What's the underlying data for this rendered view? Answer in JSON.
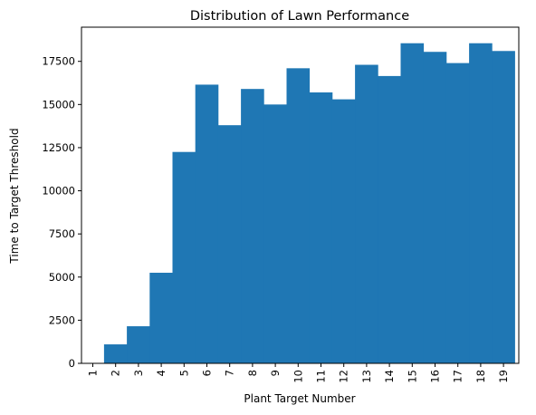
{
  "chart_data": {
    "type": "bar",
    "title": "Distribution of Lawn Performance",
    "xlabel": "Plant Target Number",
    "ylabel": "Time to Target Threshold",
    "categories": [
      "1",
      "2",
      "3",
      "4",
      "5",
      "6",
      "7",
      "8",
      "9",
      "10",
      "11",
      "12",
      "13",
      "14",
      "15",
      "16",
      "17",
      "18",
      "19"
    ],
    "values": [
      0,
      1100,
      2150,
      5250,
      12250,
      16150,
      13800,
      15900,
      15000,
      17100,
      15700,
      15300,
      17300,
      16650,
      18550,
      18050,
      17400,
      18550,
      18100
    ],
    "yticks": [
      0,
      2500,
      5000,
      7500,
      10000,
      12500,
      15000,
      17500
    ],
    "ytick_labels": [
      "0",
      "2500",
      "5000",
      "7500",
      "10000",
      "12500",
      "15000",
      "17500"
    ],
    "ylim": [
      0,
      19480
    ],
    "bar_color": "#1f77b4",
    "grid": false,
    "legend": "none"
  }
}
